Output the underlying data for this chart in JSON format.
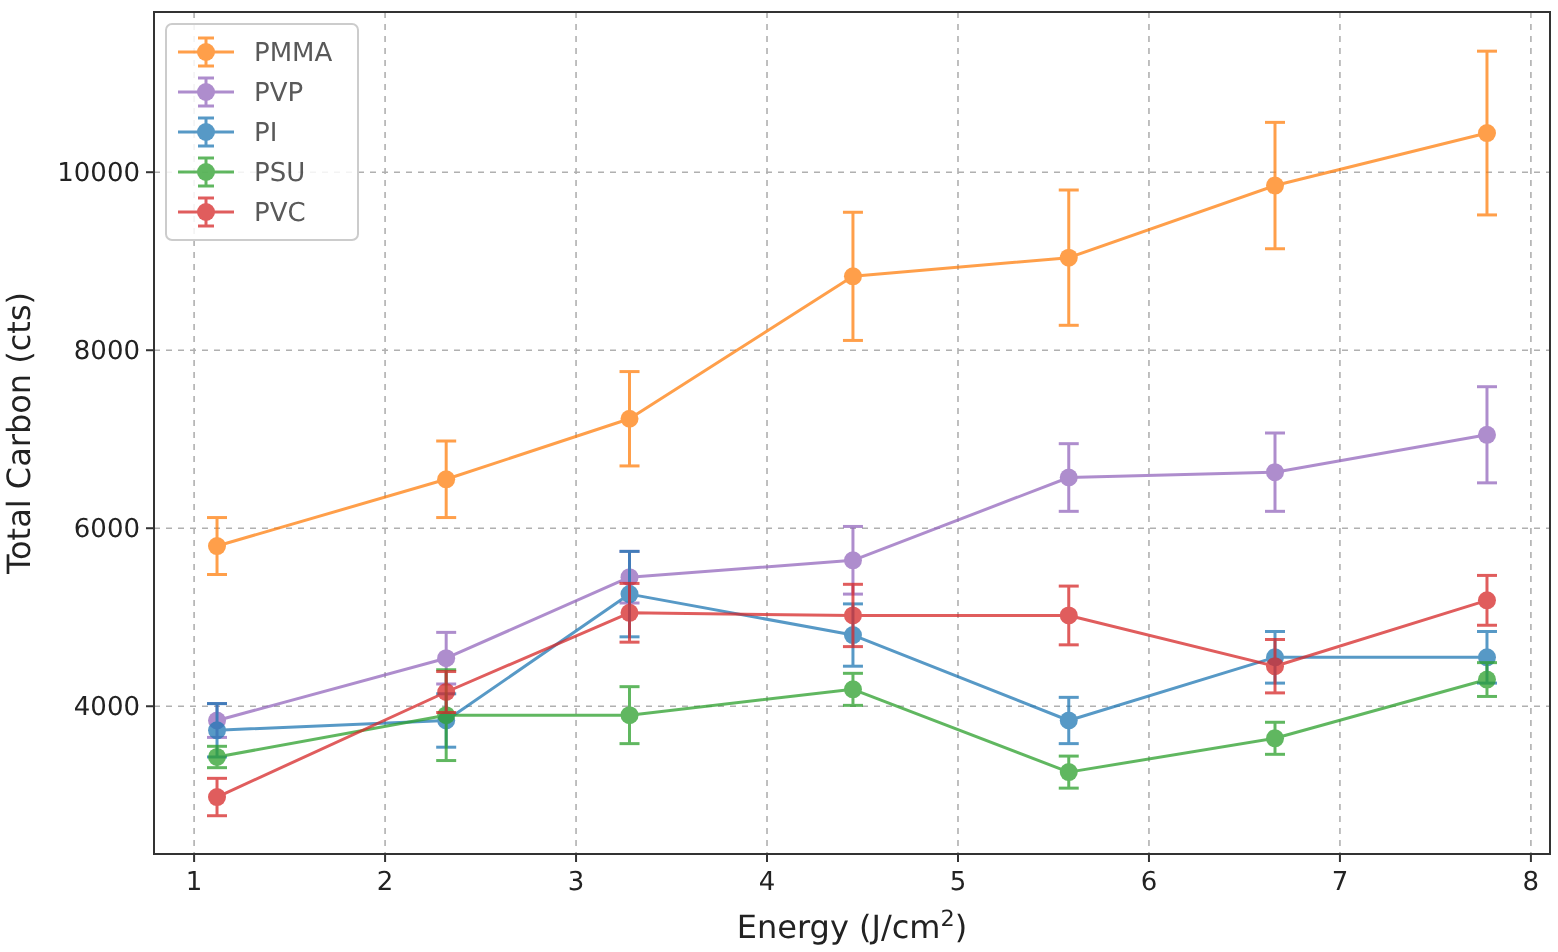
{
  "chart_data": {
    "type": "line",
    "xlabel": "Energy (J/cm$^{2}$)",
    "ylabel": "Total Carbon (cts)",
    "x": [
      1.12,
      2.32,
      3.28,
      4.45,
      5.58,
      6.66,
      7.77
    ],
    "xlim": [
      0.79,
      8.1
    ],
    "xticks": [
      1,
      2,
      3,
      4,
      5,
      6,
      7,
      8
    ],
    "ylim": [
      2340,
      11800
    ],
    "yticks": [
      4000,
      6000,
      8000,
      10000
    ],
    "grid": true,
    "legend": "top left",
    "marker": "circle",
    "line_style": "solid",
    "series": [
      {
        "name": "PMMA",
        "color": "#ff7f0e",
        "values": [
          5800,
          6550,
          7230,
          8830,
          9040,
          9850,
          10440
        ],
        "errors": [
          320,
          430,
          530,
          720,
          760,
          710,
          920
        ]
      },
      {
        "name": "PVP",
        "color": "#9467bd",
        "values": [
          3840,
          4540,
          5450,
          5640,
          6570,
          6630,
          7050
        ],
        "errors": [
          190,
          290,
          290,
          380,
          380,
          440,
          540
        ]
      },
      {
        "name": "PI",
        "color": "#1f77b4",
        "values": [
          3730,
          3840,
          5260,
          4800,
          3840,
          4550,
          4550
        ],
        "errors": [
          300,
          300,
          480,
          350,
          260,
          290,
          290
        ]
      },
      {
        "name": "PSU",
        "color": "#2ca02c",
        "values": [
          3430,
          3900,
          3900,
          4190,
          3260,
          3640,
          4300
        ],
        "errors": [
          120,
          510,
          320,
          180,
          180,
          180,
          190
        ]
      },
      {
        "name": "PVC",
        "color": "#d62728",
        "values": [
          2980,
          4160,
          5050,
          5020,
          5020,
          4450,
          5190
        ],
        "errors": [
          210,
          230,
          330,
          350,
          330,
          300,
          280
        ]
      }
    ]
  }
}
